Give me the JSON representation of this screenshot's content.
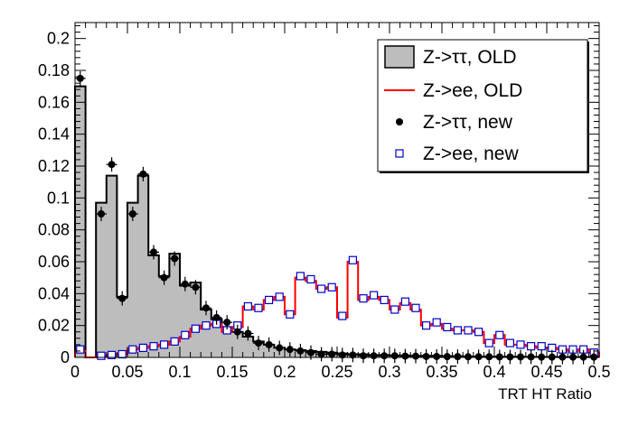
{
  "chart_data": {
    "type": "histogram",
    "xlabel": "TRT HT Ratio",
    "ylabel": "",
    "xlim": [
      0,
      0.5
    ],
    "ylim": [
      0,
      0.21
    ],
    "bin_width": 0.01,
    "x_ticks": [
      "0",
      "0.05",
      "0.1",
      "0.15",
      "0.2",
      "0.25",
      "0.3",
      "0.35",
      "0.4",
      "0.45",
      "0.5"
    ],
    "y_ticks": [
      "0",
      "0.02",
      "0.04",
      "0.06",
      "0.08",
      "0.1",
      "0.12",
      "0.14",
      "0.16",
      "0.18",
      "0.2"
    ],
    "legend_position": "top-right",
    "series": [
      {
        "name": "Z->ττ, OLD",
        "style": "filled-histogram",
        "fill": "#bdbdbd",
        "stroke": "#000000",
        "values": [
          0.17,
          0.0,
          0.097,
          0.114,
          0.038,
          0.097,
          0.114,
          0.064,
          0.051,
          0.065,
          0.045,
          0.047,
          0.03,
          0.024,
          0.019,
          0.016,
          0.013,
          0.01,
          0.008,
          0.006,
          0.005,
          0.0045,
          0.004,
          0.0035,
          0.003,
          0.0025,
          0.002,
          0.002,
          0.0015,
          0.0015,
          0.0012,
          0.0012,
          0.001,
          0.001,
          0.001,
          0.0008,
          0.0008,
          0.0006,
          0.0006,
          0.0005,
          0.0005,
          0.0004,
          0.0004,
          0.0003,
          0.0003,
          0.0003,
          0.0002,
          0.0002,
          0.0002,
          0.0002
        ]
      },
      {
        "name": "Z->ee, OLD",
        "style": "line-histogram",
        "color": "#ff0000",
        "values": [
          0.004,
          0.0,
          0.001,
          0.0015,
          0.002,
          0.005,
          0.006,
          0.007,
          0.008,
          0.01,
          0.013,
          0.018,
          0.02,
          0.021,
          0.016,
          0.019,
          0.032,
          0.03,
          0.036,
          0.038,
          0.027,
          0.05,
          0.048,
          0.043,
          0.044,
          0.025,
          0.06,
          0.036,
          0.038,
          0.036,
          0.03,
          0.034,
          0.03,
          0.02,
          0.021,
          0.018,
          0.017,
          0.017,
          0.016,
          0.009,
          0.014,
          0.008,
          0.008,
          0.007,
          0.006,
          0.006,
          0.005,
          0.004,
          0.005,
          0.003
        ]
      },
      {
        "name": "Z->ττ, new",
        "style": "markers",
        "marker": "filled-circle",
        "color": "#000000",
        "values": [
          0.175,
          0.0,
          0.09,
          0.121,
          0.037,
          0.09,
          0.115,
          0.066,
          0.05,
          0.062,
          0.046,
          0.044,
          0.031,
          0.025,
          0.022,
          0.016,
          0.015,
          0.009,
          0.008,
          0.006,
          0.005,
          0.004,
          0.003,
          0.002,
          0.002,
          0.0015,
          0.0015,
          0.001,
          0.001,
          0.001,
          0.001,
          0.0008,
          0.0008,
          0.0006,
          0.0006,
          0.0005,
          0.0005,
          0.0004,
          0.0004,
          0.0004,
          0.0003,
          0.0003,
          0.0003,
          0.0003,
          0.0002,
          0.0002,
          0.0002,
          0.0002,
          0.0002,
          0.0002
        ]
      },
      {
        "name": "Z->ee, new",
        "style": "markers",
        "marker": "open-square",
        "color": "#0000cc",
        "values": [
          0.005,
          0.0,
          0.001,
          0.0015,
          0.002,
          0.005,
          0.006,
          0.007,
          0.008,
          0.01,
          0.014,
          0.018,
          0.02,
          0.021,
          0.017,
          0.02,
          0.032,
          0.031,
          0.036,
          0.038,
          0.027,
          0.051,
          0.049,
          0.043,
          0.044,
          0.026,
          0.061,
          0.037,
          0.039,
          0.036,
          0.03,
          0.035,
          0.031,
          0.02,
          0.022,
          0.019,
          0.017,
          0.017,
          0.016,
          0.009,
          0.014,
          0.009,
          0.008,
          0.007,
          0.007,
          0.006,
          0.005,
          0.005,
          0.005,
          0.003
        ]
      }
    ]
  }
}
